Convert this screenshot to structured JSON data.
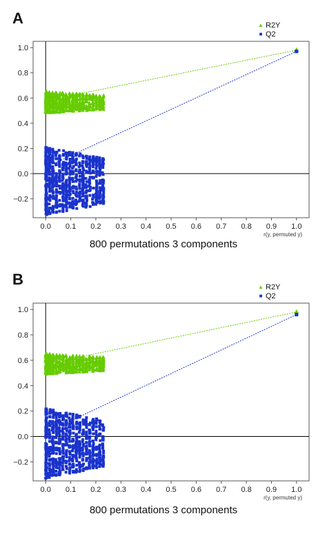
{
  "panels": [
    {
      "letter": "A",
      "caption": "800 permutations 3 components",
      "legend": [
        {
          "label": "R2Y",
          "color": "#66cc00",
          "marker": "triangle"
        },
        {
          "label": "Q2",
          "color": "#1a33cc",
          "marker": "square"
        }
      ]
    },
    {
      "letter": "B",
      "caption": "800 permutations 3 components",
      "legend": [
        {
          "label": "R2Y",
          "color": "#66cc00",
          "marker": "triangle"
        },
        {
          "label": "Q2",
          "color": "#1a33cc",
          "marker": "square"
        }
      ]
    }
  ],
  "chart_data": [
    {
      "type": "scatter",
      "title": "",
      "xlabel": "r(y, permuted y)",
      "ylabel": "",
      "xlim": [
        -0.05,
        1.05
      ],
      "ylim": [
        -0.35,
        1.05
      ],
      "xticks": [
        0.0,
        0.1,
        0.2,
        0.3,
        0.4,
        0.5,
        0.6,
        0.7,
        0.8,
        0.9,
        1.0
      ],
      "xtick_labels": [
        "0.0",
        "0.1",
        "0.2",
        "0.3",
        "0.4",
        "0.5",
        "0.6",
        "0.7",
        "0.8",
        "0.9",
        "1.0"
      ],
      "yticks": [
        -0.2,
        0.0,
        0.2,
        0.4,
        0.6,
        0.8,
        1.0
      ],
      "ytick_labels": [
        "−0.2",
        "0.0",
        "0.2",
        "0.4",
        "0.6",
        "0.8",
        "1.0"
      ],
      "series": [
        {
          "name": "R2Y",
          "color": "#66cc00",
          "marker": "triangle",
          "original": {
            "x": 1.0,
            "y": 0.98
          },
          "regression_intercept": 0.58,
          "permutation_cloud": {
            "x_range": [
              0.0,
              0.24
            ],
            "y_range": [
              0.48,
              0.65
            ],
            "count": 800
          }
        },
        {
          "name": "Q2",
          "color": "#1a33cc",
          "marker": "square",
          "original": {
            "x": 1.0,
            "y": 0.97
          },
          "regression_intercept": 0.05,
          "permutation_cloud": {
            "x_range": [
              0.0,
              0.24
            ],
            "y_range": [
              -0.33,
              0.21
            ],
            "count": 800
          }
        }
      ],
      "grid": false,
      "legend_position": "top-right"
    },
    {
      "type": "scatter",
      "title": "",
      "xlabel": "r(y, permuted y)",
      "ylabel": "",
      "xlim": [
        -0.05,
        1.05
      ],
      "ylim": [
        -0.35,
        1.05
      ],
      "xticks": [
        0.0,
        0.1,
        0.2,
        0.3,
        0.4,
        0.5,
        0.6,
        0.7,
        0.8,
        0.9,
        1.0
      ],
      "xtick_labels": [
        "0.0",
        "0.1",
        "0.2",
        "0.3",
        "0.4",
        "0.5",
        "0.6",
        "0.7",
        "0.8",
        "0.9",
        "1.0"
      ],
      "yticks": [
        -0.2,
        0.0,
        0.2,
        0.4,
        0.6,
        0.8,
        1.0
      ],
      "ytick_labels": [
        "−0.2",
        "0.0",
        "0.2",
        "0.4",
        "0.6",
        "0.8",
        "1.0"
      ],
      "series": [
        {
          "name": "R2Y",
          "color": "#66cc00",
          "marker": "triangle",
          "original": {
            "x": 1.0,
            "y": 0.98
          },
          "regression_intercept": 0.57,
          "permutation_cloud": {
            "x_range": [
              0.0,
              0.24
            ],
            "y_range": [
              0.49,
              0.65
            ],
            "count": 800
          }
        },
        {
          "name": "Q2",
          "color": "#1a33cc",
          "marker": "square",
          "original": {
            "x": 1.0,
            "y": 0.96
          },
          "regression_intercept": 0.03,
          "permutation_cloud": {
            "x_range": [
              0.0,
              0.24
            ],
            "y_range": [
              -0.33,
              0.22
            ],
            "count": 800
          }
        }
      ],
      "grid": false,
      "legend_position": "top-right"
    }
  ]
}
